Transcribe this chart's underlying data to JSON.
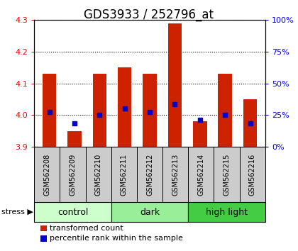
{
  "title": "GDS3933 / 252796_at",
  "samples": [
    "GSM562208",
    "GSM562209",
    "GSM562210",
    "GSM562211",
    "GSM562212",
    "GSM562213",
    "GSM562214",
    "GSM562215",
    "GSM562216"
  ],
  "bar_tops": [
    4.13,
    3.95,
    4.13,
    4.15,
    4.13,
    4.29,
    3.98,
    4.13,
    4.05
  ],
  "bar_bottom": 3.9,
  "blue_dots": [
    4.01,
    3.975,
    4.0,
    4.02,
    4.01,
    4.035,
    3.985,
    4.0,
    3.975
  ],
  "groups": [
    {
      "label": "control",
      "start": 0,
      "end": 3,
      "color": "#ccffcc"
    },
    {
      "label": "dark",
      "start": 3,
      "end": 6,
      "color": "#99ee99"
    },
    {
      "label": "high light",
      "start": 6,
      "end": 9,
      "color": "#44cc44"
    }
  ],
  "ylim": [
    3.9,
    4.3
  ],
  "yticks_left": [
    3.9,
    4.0,
    4.1,
    4.2,
    4.3
  ],
  "bar_color": "#cc2200",
  "dot_color": "#0000cc",
  "bg_color": "#ffffff",
  "sample_box_color": "#cccccc",
  "stress_label": "stress",
  "legend": [
    "transformed count",
    "percentile rank within the sample"
  ],
  "title_fontsize": 12,
  "tick_label_fontsize": 8,
  "legend_fontsize": 8,
  "sample_fontsize": 7,
  "group_fontsize": 9
}
